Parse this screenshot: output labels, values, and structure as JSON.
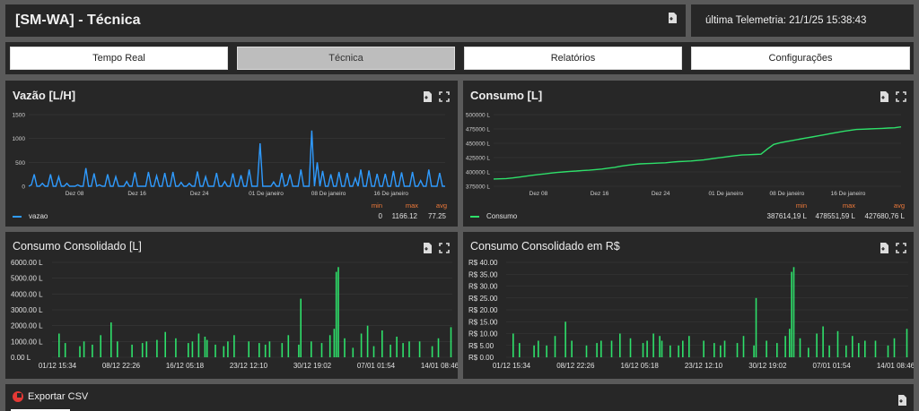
{
  "header": {
    "title": "[SM-WA] - Técnica",
    "telemetry_label": "última Telemetria: 21/1/25 15:38:43"
  },
  "tabs": [
    {
      "label": "Tempo Real",
      "active": false
    },
    {
      "label": "Técnica",
      "active": true
    },
    {
      "label": "Relatórios",
      "active": false
    },
    {
      "label": "Configurações",
      "active": false
    }
  ],
  "panels": {
    "vazao": {
      "title": "Vazão [L/H]",
      "legend": {
        "name": "vazao",
        "color": "#2f9bff"
      },
      "stats": {
        "min_label": "min",
        "max_label": "max",
        "avg_label": "avg",
        "min": "0",
        "max": "1166.12",
        "avg": "77.25"
      }
    },
    "consumo": {
      "title": "Consumo [L]",
      "legend": {
        "name": "Consumo",
        "color": "#2ee06a"
      },
      "stats": {
        "min_label": "min",
        "max_label": "max",
        "avg_label": "avg",
        "min": "387614,19 L",
        "max": "478551,59 L",
        "avg": "427680,76 L"
      }
    },
    "consolidado": {
      "title": "Consumo Consolidado [L]"
    },
    "consolidado_rs": {
      "title": "Consumo Consolidado em R$"
    }
  },
  "export": {
    "label": "Exportar CSV"
  },
  "colors": {
    "accent_blue": "#2f9bff",
    "accent_green": "#2ee06a",
    "stat_orange": "#f07a3a",
    "panel_bg": "#272727",
    "page_bg": "#5a5a5a"
  },
  "icons": {
    "download": "file-download-icon",
    "fullscreen": "fullscreen-icon",
    "export": "csv-export-icon"
  },
  "chart_data": [
    {
      "type": "line",
      "title": "Vazão [L/H]",
      "xlabels": [
        "Dez 08",
        "Dez 16",
        "Dez 24",
        "01 De janeiro",
        "08 De janeiro",
        "16 De janeiro"
      ],
      "ylim": [
        0,
        1500
      ],
      "yticks": [
        0,
        500,
        1000,
        1500
      ],
      "series": [
        {
          "name": "vazao",
          "values": [
            0,
            30,
            250,
            0,
            0,
            60,
            0,
            0,
            250,
            0,
            0,
            200,
            0,
            0,
            60,
            0,
            0,
            0,
            30,
            0,
            0,
            380,
            0,
            0,
            270,
            0,
            30,
            0,
            0,
            250,
            0,
            0,
            200,
            0,
            0,
            0,
            100,
            0,
            0,
            290,
            0,
            0,
            0,
            0,
            300,
            0,
            0,
            220,
            0,
            0,
            280,
            0,
            0,
            300,
            0,
            0,
            80,
            0,
            0,
            60,
            0,
            0,
            310,
            0,
            0,
            200,
            0,
            0,
            0,
            280,
            0,
            0,
            100,
            0,
            0,
            270,
            0,
            0,
            230,
            0,
            0,
            350,
            0,
            0,
            0,
            900,
            0,
            0,
            0,
            0,
            90,
            0,
            0,
            280,
            0,
            30,
            250,
            0,
            0,
            0,
            350,
            0,
            0,
            0,
            1166,
            0,
            500,
            0,
            320,
            0,
            0,
            250,
            0,
            0,
            300,
            0,
            0,
            280,
            0,
            0,
            170,
            0,
            350,
            0,
            0,
            330,
            0,
            0,
            260,
            0,
            0,
            260,
            0,
            0,
            320,
            0,
            0,
            290,
            0,
            0,
            0,
            300,
            0,
            0,
            120,
            0,
            0,
            350,
            0,
            0,
            0,
            280,
            0,
            0
          ]
        }
      ],
      "legend": "bottom-left"
    },
    {
      "type": "line",
      "title": "Consumo [L]",
      "xlabels": [
        "Dez 08",
        "Dez 16",
        "Dez 24",
        "01 De janeiro",
        "08 De janeiro",
        "16 De janeiro"
      ],
      "ylim": [
        375000,
        500000
      ],
      "yticks": [
        "375000 L",
        "400000 L",
        "425000 L",
        "450000 L",
        "475000 L",
        "500000 L"
      ],
      "series": [
        {
          "name": "Consumo",
          "values": [
            387614,
            388000,
            388500,
            389500,
            391000,
            392500,
            394000,
            395500,
            396500,
            398000,
            399000,
            400000,
            401000,
            401500,
            402500,
            403000,
            404000,
            405000,
            406500,
            408000,
            410000,
            411500,
            413000,
            414000,
            414500,
            415000,
            415500,
            416000,
            417000,
            418000,
            418500,
            419000,
            420000,
            421000,
            422500,
            424000,
            425500,
            427000,
            428500,
            429500,
            430000,
            430500,
            431000,
            440000,
            448000,
            451000,
            453000,
            455000,
            457000,
            459000,
            461000,
            463000,
            465000,
            467000,
            469000,
            471000,
            472500,
            474000,
            474500,
            475000,
            475500,
            476000,
            476500,
            477000,
            478551
          ]
        }
      ],
      "legend": "bottom-left"
    },
    {
      "type": "bar",
      "title": "Consumo Consolidado [L]",
      "xlabels": [
        "01/12 15:34",
        "08/12 22:26",
        "16/12 05:18",
        "23/12 12:10",
        "30/12 19:02",
        "07/01 01:54",
        "14/01 08:46"
      ],
      "yticks": [
        "0.00 L",
        "1000.00 L",
        "2000.00 L",
        "3000.00 L",
        "4000.00 L",
        "5000.00 L",
        "6000.00 L"
      ],
      "ylim": [
        0,
        6000
      ],
      "series": [
        {
          "name": "Consumo Consolidado [L]",
          "values": [
            0,
            0,
            0,
            1500,
            0,
            0,
            900,
            0,
            0,
            0,
            0,
            0,
            0,
            700,
            0,
            1000,
            0,
            0,
            0,
            800,
            0,
            0,
            0,
            1400,
            0,
            0,
            0,
            0,
            2200,
            0,
            0,
            1000,
            0,
            0,
            0,
            0,
            0,
            0,
            800,
            0,
            0,
            0,
            0,
            900,
            0,
            1000,
            0,
            0,
            0,
            0,
            1100,
            0,
            0,
            0,
            1600,
            0,
            0,
            0,
            0,
            1200,
            0,
            0,
            0,
            0,
            0,
            900,
            0,
            1000,
            0,
            0,
            1500,
            0,
            0,
            1300,
            1100,
            0,
            0,
            0,
            800,
            0,
            0,
            0,
            700,
            0,
            1000,
            0,
            0,
            1400,
            0,
            0,
            0,
            0,
            0,
            0,
            1000,
            0,
            0,
            0,
            0,
            900,
            0,
            0,
            800,
            0,
            1000,
            0,
            0,
            0,
            0,
            0,
            900,
            0,
            0,
            1400,
            0,
            0,
            0,
            0,
            800,
            3700,
            0,
            0,
            0,
            0,
            1000,
            0,
            0,
            0,
            0,
            900,
            0,
            0,
            0,
            1400,
            0,
            1800,
            5400,
            5700,
            0,
            0,
            1200,
            0,
            0,
            0,
            600,
            0,
            0,
            0,
            1500,
            0,
            0,
            2000,
            0,
            0,
            700,
            0,
            0,
            0,
            1700,
            0,
            0,
            0,
            800,
            0,
            0,
            1300,
            0,
            0,
            900,
            0,
            0,
            1000,
            0,
            0,
            0,
            0,
            1000,
            0,
            0,
            0,
            0,
            0,
            700,
            0,
            0,
            1200,
            0,
            0,
            0,
            0,
            0,
            1900
          ]
        }
      ]
    },
    {
      "type": "bar",
      "title": "Consumo Consolidado em R$",
      "xlabels": [
        "01/12 15:34",
        "08/12 22:26",
        "16/12 05:18",
        "23/12 12:10",
        "30/12 19:02",
        "07/01 01:54",
        "14/01 08:46"
      ],
      "yticks": [
        "R$ 0.00",
        "R$ 5.00",
        "R$ 10.00",
        "R$ 15.00",
        "R$ 20.00",
        "R$ 25.00",
        "R$ 30.00",
        "R$ 35.00",
        "R$ 40.00"
      ],
      "ylim": [
        0,
        40
      ],
      "series": [
        {
          "name": "Consumo Consolidado em R$",
          "values": [
            0,
            0,
            0,
            10,
            0,
            0,
            6,
            0,
            0,
            0,
            0,
            0,
            0,
            5,
            0,
            7,
            0,
            0,
            0,
            5,
            0,
            0,
            0,
            9,
            0,
            0,
            0,
            0,
            15,
            0,
            0,
            7,
            0,
            0,
            0,
            0,
            0,
            0,
            5,
            0,
            0,
            0,
            0,
            6,
            0,
            7,
            0,
            0,
            0,
            0,
            7,
            0,
            0,
            0,
            10,
            0,
            0,
            0,
            0,
            8,
            0,
            0,
            0,
            0,
            0,
            6,
            0,
            7,
            0,
            0,
            10,
            0,
            0,
            9,
            7,
            0,
            0,
            0,
            5,
            0,
            0,
            0,
            5,
            0,
            7,
            0,
            0,
            9,
            0,
            0,
            0,
            0,
            0,
            0,
            7,
            0,
            0,
            0,
            0,
            6,
            0,
            0,
            5,
            0,
            7,
            0,
            0,
            0,
            0,
            0,
            6,
            0,
            0,
            9,
            0,
            0,
            0,
            0,
            5,
            25,
            0,
            0,
            0,
            0,
            7,
            0,
            0,
            0,
            0,
            6,
            0,
            0,
            0,
            9,
            0,
            12,
            36,
            38,
            0,
            0,
            8,
            0,
            0,
            0,
            4,
            0,
            0,
            0,
            10,
            0,
            0,
            13,
            0,
            0,
            5,
            0,
            0,
            0,
            11,
            0,
            0,
            0,
            5,
            0,
            0,
            9,
            0,
            0,
            6,
            0,
            0,
            7,
            0,
            0,
            0,
            0,
            7,
            0,
            0,
            0,
            0,
            0,
            5,
            0,
            0,
            8,
            0,
            0,
            0,
            0,
            0,
            12
          ]
        }
      ]
    }
  ]
}
